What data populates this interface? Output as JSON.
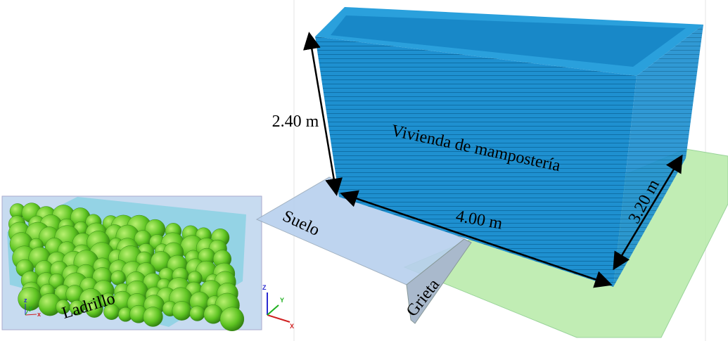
{
  "inset": {
    "label": "Ladrillo",
    "axes": [
      "z",
      "y",
      "x"
    ]
  },
  "main": {
    "house_label": "Vivienda de mampostería",
    "height": "2.40 m",
    "width": "4.00 m",
    "depth": "3.20 m",
    "ground": "Suelo",
    "crack": "Grieta",
    "axes": [
      "Z",
      "Y",
      "X"
    ]
  }
}
